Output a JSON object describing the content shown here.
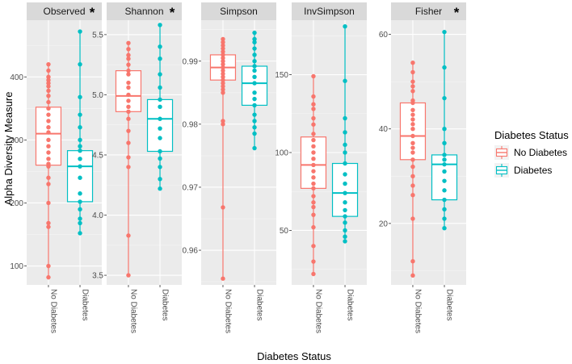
{
  "chart_data": {
    "type": "boxplot",
    "xlabel": "Diabetes Status",
    "ylabel": "Alpha Diversity Measure",
    "categories": [
      "No Diabetes",
      "Diabetes"
    ],
    "legend": {
      "title": "Diabetes Status",
      "position": "right",
      "entries": [
        {
          "label": "No Diabetes",
          "color": "#F8766D"
        },
        {
          "label": "Diabetes",
          "color": "#00BFC4"
        }
      ]
    },
    "panels": [
      {
        "name": "Observed",
        "significant": true,
        "star": "*",
        "ylim": [
          70,
          490
        ],
        "ticks": [
          100,
          200,
          300,
          400
        ],
        "groups": [
          {
            "category": "No Diabetes",
            "color": "#F8766D",
            "q1": 260,
            "median": 310,
            "q3": 352,
            "whisker_low": 80,
            "whisker_high": 420,
            "points": [
              420,
              410,
              400,
              395,
              390,
              385,
              378,
              370,
              360,
              350,
              340,
              330,
              320,
              312,
              300,
              290,
              280,
              270,
              262,
              258,
              240,
              230,
              200,
              168,
              162,
              100,
              82
            ]
          },
          {
            "category": "Diabetes",
            "color": "#00BFC4",
            "q1": 202,
            "median": 258,
            "q3": 283,
            "whisker_low": 152,
            "whisker_high": 472,
            "points": [
              472,
              420,
              368,
              340,
              320,
              300,
              290,
              283,
              270,
              258,
              240,
              215,
              202,
              190,
              175,
              168,
              152
            ]
          }
        ]
      },
      {
        "name": "Shannon",
        "significant": true,
        "star": "*",
        "ylim": [
          3.42,
          5.62
        ],
        "ticks": [
          3.5,
          4.0,
          4.5,
          5.0,
          5.5
        ],
        "groups": [
          {
            "category": "No Diabetes",
            "color": "#F8766D",
            "q1": 4.86,
            "median": 4.99,
            "q3": 5.2,
            "whisker_low": 3.5,
            "whisker_high": 5.43,
            "points": [
              5.43,
              5.38,
              5.33,
              5.3,
              5.25,
              5.2,
              5.17,
              5.1,
              5.06,
              5.0,
              4.95,
              4.9,
              4.86,
              4.8,
              4.7,
              4.6,
              4.48,
              4.4,
              3.83,
              3.5
            ]
          },
          {
            "category": "Diabetes",
            "color": "#00BFC4",
            "q1": 4.53,
            "median": 4.8,
            "q3": 4.96,
            "whisker_low": 4.22,
            "whisker_high": 5.58,
            "points": [
              5.58,
              5.4,
              5.3,
              5.17,
              5.06,
              4.96,
              4.9,
              4.8,
              4.72,
              4.64,
              4.53,
              4.47,
              4.4,
              4.3,
              4.22
            ]
          }
        ]
      },
      {
        "name": "Simpson",
        "significant": false,
        "star": "",
        "ylim": [
          0.9545,
          0.9965
        ],
        "ticks": [
          0.96,
          0.97,
          0.98,
          0.99
        ],
        "groups": [
          {
            "category": "No Diabetes",
            "color": "#F8766D",
            "q1": 0.987,
            "median": 0.989,
            "q3": 0.991,
            "whisker_low": 0.9555,
            "whisker_high": 0.9935,
            "points": [
              0.9935,
              0.993,
              0.9925,
              0.992,
              0.9915,
              0.991,
              0.9905,
              0.99,
              0.9895,
              0.989,
              0.9885,
              0.988,
              0.9875,
              0.987,
              0.9865,
              0.986,
              0.9855,
              0.985,
              0.9805,
              0.98,
              0.9668,
              0.9555
            ]
          },
          {
            "category": "Diabetes",
            "color": "#00BFC4",
            "q1": 0.983,
            "median": 0.9865,
            "q3": 0.9892,
            "whisker_low": 0.9762,
            "whisker_high": 0.9945,
            "points": [
              0.9945,
              0.9935,
              0.993,
              0.992,
              0.991,
              0.99,
              0.9892,
              0.9885,
              0.9875,
              0.9865,
              0.985,
              0.984,
              0.983,
              0.9815,
              0.9805,
              0.9795,
              0.9785,
              0.9762
            ]
          }
        ]
      },
      {
        "name": "InvSimpson",
        "significant": false,
        "star": "",
        "ylim": [
          15,
          185
        ],
        "ticks": [
          50,
          100,
          150
        ],
        "groups": [
          {
            "category": "No Diabetes",
            "color": "#F8766D",
            "q1": 77,
            "median": 92,
            "q3": 110,
            "whisker_low": 22,
            "whisker_high": 149,
            "points": [
              149,
              136,
              131,
              128,
              122,
              118,
              112,
              108,
              104,
              100,
              96,
              92,
              88,
              84,
              80,
              77,
              72,
              68,
              65,
              60,
              52,
              40,
              30,
              22
            ]
          },
          {
            "category": "Diabetes",
            "color": "#00BFC4",
            "q1": 59,
            "median": 74,
            "q3": 93,
            "whisker_low": 43,
            "whisker_high": 181,
            "points": [
              181,
              146,
              122,
              113,
              105,
              100,
              93,
              86,
              80,
              74,
              68,
              63,
              59,
              55,
              50,
              46,
              43
            ]
          }
        ]
      },
      {
        "name": "Fisher",
        "significant": true,
        "star": "*",
        "ylim": [
          7,
          63
        ],
        "ticks": [
          20,
          40,
          60
        ],
        "groups": [
          {
            "category": "No Diabetes",
            "color": "#F8766D",
            "q1": 33.5,
            "median": 38.5,
            "q3": 45.5,
            "whisker_low": 9,
            "whisker_high": 54,
            "points": [
              54,
              52,
              50,
              49,
              48,
              46,
              45.5,
              44,
              43,
              42,
              41,
              40,
              38.5,
              37,
              36,
              35,
              33.5,
              32,
              30,
              28,
              26,
              21,
              12,
              9
            ]
          },
          {
            "category": "Diabetes",
            "color": "#00BFC4",
            "q1": 25,
            "median": 32.5,
            "q3": 34.5,
            "whisker_low": 19,
            "whisker_high": 60.5,
            "points": [
              60.5,
              53,
              46.5,
              40,
              37,
              34.5,
              33.5,
              32.5,
              31,
              29,
              27,
              25,
              23,
              21,
              19
            ]
          }
        ]
      }
    ]
  }
}
